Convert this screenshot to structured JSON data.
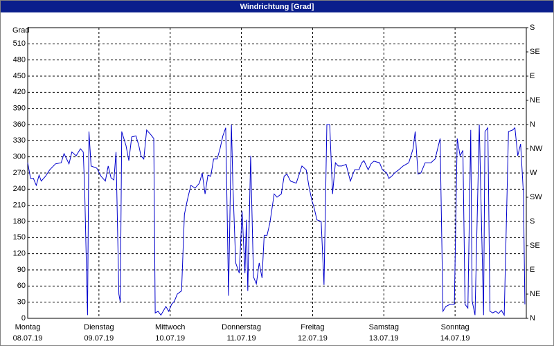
{
  "chart_data": {
    "type": "line",
    "title": "Windrichtung [Grad]",
    "y_label": "Grad",
    "xlim": [
      0,
      7
    ],
    "xticks": [
      {
        "value": 0,
        "label": "Montag"
      },
      {
        "value": 1,
        "label": "Dienstag"
      },
      {
        "value": 2,
        "label": "Mittwoch"
      },
      {
        "value": 3,
        "label": "Donnerstag"
      },
      {
        "value": 4,
        "label": "Freitag"
      },
      {
        "value": 5,
        "label": "Samstag"
      },
      {
        "value": 6,
        "label": "Sonntag"
      }
    ],
    "xtick_dates": [
      "08.07.19",
      "09.07.19",
      "10.07.19",
      "11.07.19",
      "12.07.19",
      "13.07.19",
      "14.07.19"
    ],
    "ylim": [
      0,
      540
    ],
    "yticks": [
      0,
      30,
      60,
      90,
      120,
      150,
      180,
      210,
      240,
      270,
      300,
      330,
      360,
      390,
      420,
      450,
      480,
      510
    ],
    "y2lim": [
      0,
      540
    ],
    "y2ticks": [
      {
        "value": 0,
        "label": "N"
      },
      {
        "value": 45,
        "label": "NE"
      },
      {
        "value": 90,
        "label": "E"
      },
      {
        "value": 135,
        "label": "SE"
      },
      {
        "value": 180,
        "label": "S"
      },
      {
        "value": 225,
        "label": "SW"
      },
      {
        "value": 270,
        "label": "W"
      },
      {
        "value": 315,
        "label": "NW"
      },
      {
        "value": 360,
        "label": "N"
      },
      {
        "value": 405,
        "label": "NE"
      },
      {
        "value": 450,
        "label": "E"
      },
      {
        "value": 495,
        "label": "SE"
      },
      {
        "value": 540,
        "label": "S"
      }
    ],
    "grid": true,
    "x": [
      0,
      0.04,
      0.08,
      0.12,
      0.16,
      0.19,
      0.25,
      0.31,
      0.39,
      0.47,
      0.51,
      0.58,
      0.62,
      0.68,
      0.74,
      0.78,
      0.8,
      0.84,
      0.86,
      0.89,
      0.97,
      1.03,
      1.09,
      1.13,
      1.17,
      1.21,
      1.24,
      1.28,
      1.3,
      1.32,
      1.38,
      1.42,
      1.46,
      1.52,
      1.56,
      1.59,
      1.63,
      1.67,
      1.73,
      1.77,
      1.79,
      1.83,
      1.87,
      1.91,
      1.94,
      1.98,
      2.02,
      2.06,
      2.1,
      2.16,
      2.2,
      2.24,
      2.29,
      2.35,
      2.41,
      2.45,
      2.49,
      2.53,
      2.57,
      2.61,
      2.66,
      2.7,
      2.74,
      2.78,
      2.82,
      2.86,
      2.88,
      2.92,
      2.97,
      3.01,
      3.05,
      3.07,
      3.09,
      3.13,
      3.17,
      3.21,
      3.25,
      3.29,
      3.32,
      3.36,
      3.4,
      3.46,
      3.5,
      3.56,
      3.6,
      3.64,
      3.69,
      3.77,
      3.85,
      3.91,
      3.95,
      3.99,
      4.02,
      4.06,
      4.12,
      4.16,
      4.2,
      4.24,
      4.28,
      4.32,
      4.36,
      4.41,
      4.47,
      4.53,
      4.59,
      4.65,
      4.69,
      4.72,
      4.78,
      4.82,
      4.86,
      4.94,
      4.98,
      5.04,
      5.07,
      5.11,
      5.15,
      5.21,
      5.27,
      5.35,
      5.41,
      5.44,
      5.48,
      5.52,
      5.58,
      5.66,
      5.72,
      5.79,
      5.83,
      5.87,
      5.93,
      5.99,
      6.03,
      6.07,
      6.11,
      6.14,
      6.18,
      6.22,
      6.24,
      6.28,
      6.34,
      6.4,
      6.42,
      6.46,
      6.49,
      6.53,
      6.57,
      6.61,
      6.65,
      6.69,
      6.75,
      6.81,
      6.84,
      6.88,
      6.92,
      6.96,
      6.98
    ],
    "series": [
      {
        "name": "Windrichtung",
        "color": "#0000cc",
        "values": [
          289,
          260,
          260,
          247,
          266,
          255,
          264,
          276,
          287,
          289,
          306,
          287,
          309,
          302,
          315,
          309,
          238,
          6,
          347,
          283,
          279,
          264,
          255,
          283,
          261,
          257,
          309,
          45,
          30,
          347,
          321,
          293,
          337,
          339,
          321,
          302,
          296,
          350,
          341,
          334,
          10,
          13,
          6,
          15,
          22,
          13,
          26,
          32,
          45,
          51,
          193,
          219,
          247,
          242,
          251,
          270,
          231,
          266,
          264,
          296,
          296,
          315,
          339,
          354,
          42,
          360,
          251,
          103,
          84,
          199,
          84,
          183,
          51,
          302,
          77,
          64,
          103,
          75,
          154,
          154,
          177,
          231,
          225,
          231,
          264,
          268,
          255,
          251,
          283,
          276,
          244,
          219,
          206,
          183,
          180,
          62,
          360,
          360,
          231,
          289,
          283,
          283,
          286,
          255,
          276,
          276,
          289,
          293,
          276,
          287,
          292,
          289,
          276,
          270,
          260,
          264,
          270,
          276,
          283,
          289,
          315,
          347,
          268,
          270,
          289,
          289,
          296,
          334,
          13,
          22,
          26,
          26,
          334,
          302,
          312,
          26,
          19,
          350,
          32,
          6,
          360,
          6,
          347,
          354,
          13,
          10,
          13,
          9,
          15,
          6,
          347,
          350,
          354,
          302,
          324,
          231,
          26
        ]
      }
    ]
  }
}
